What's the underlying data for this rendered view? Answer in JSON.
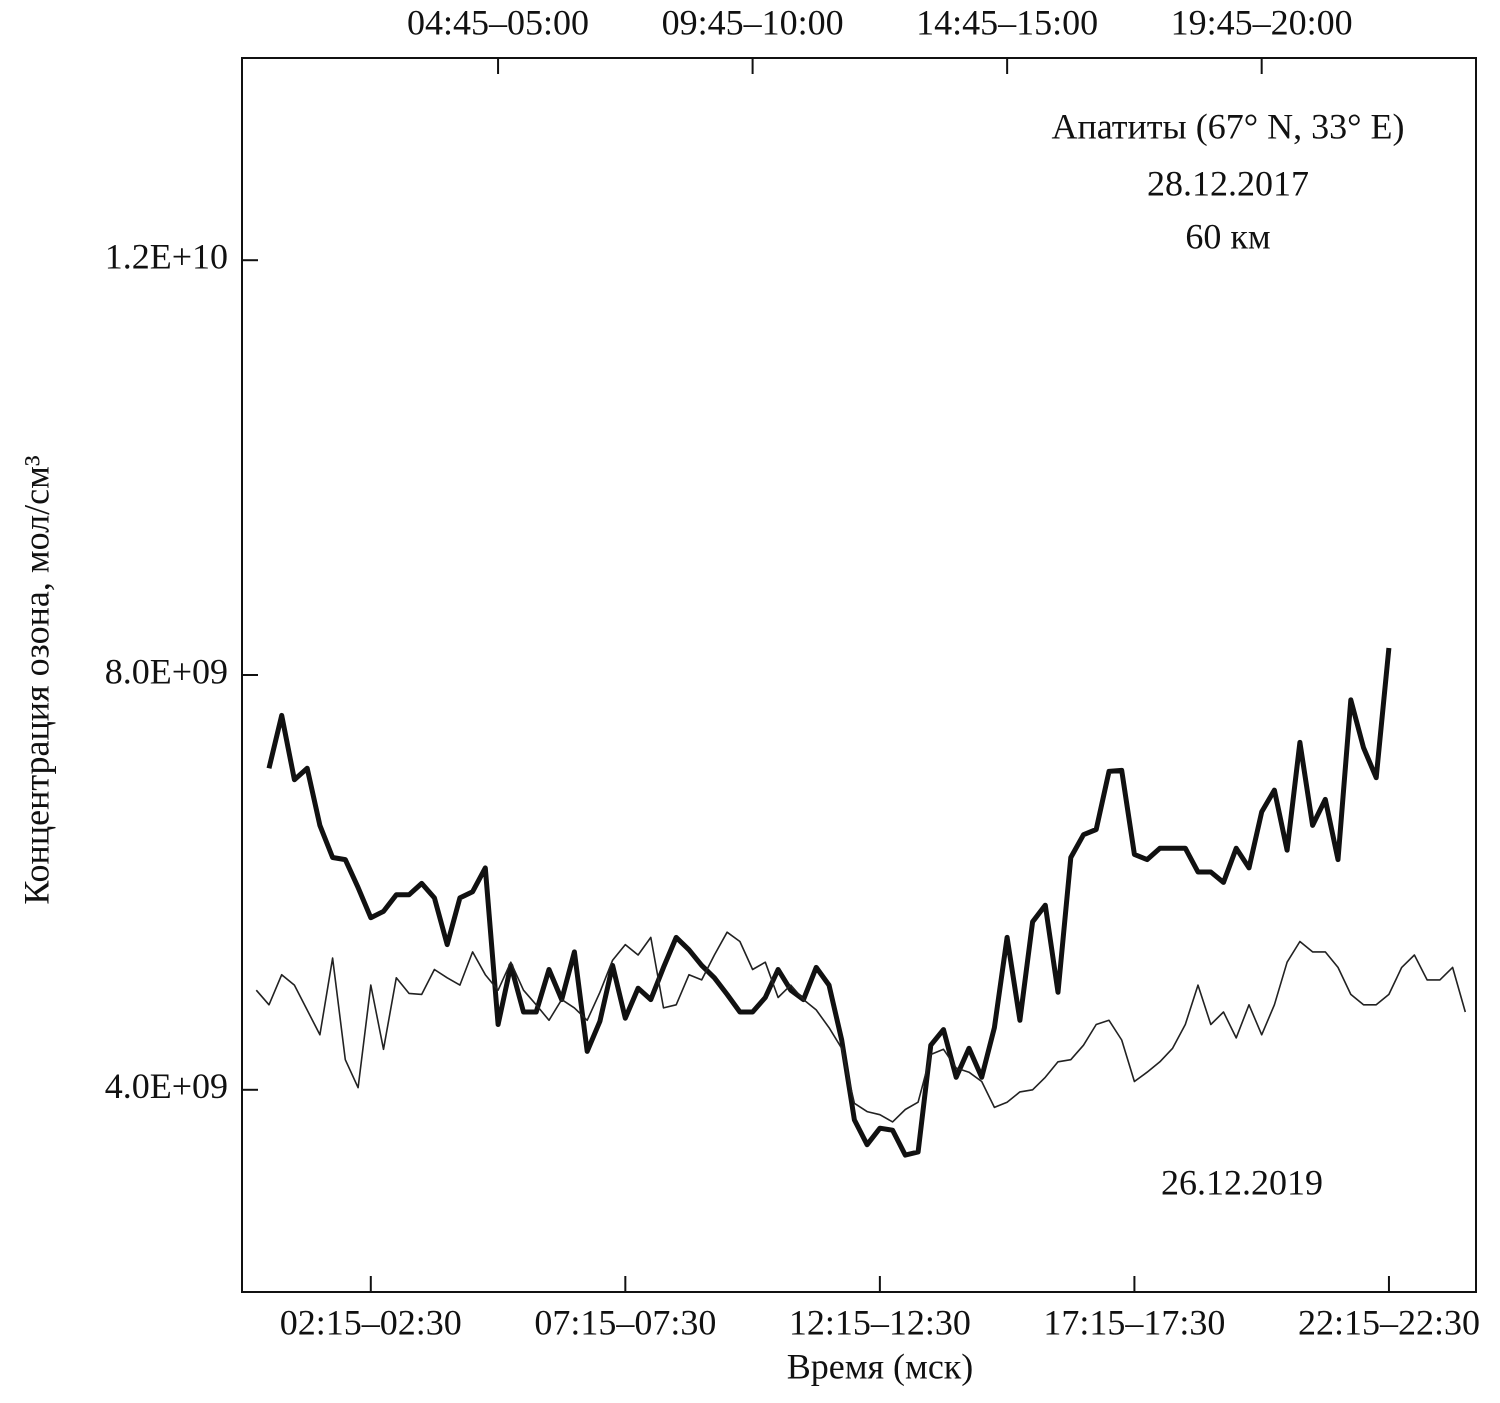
{
  "chart_data": {
    "type": "line",
    "title": "Апатиты (67° N, 33° E)",
    "annotations": [
      "60 км"
    ],
    "xlabel": "Время (мск)",
    "ylabel": "Концентрация озона, мол/см³",
    "xlim": [
      -0.28,
      23.96
    ],
    "ylim": [
      2050000000,
      13950000000
    ],
    "xticks": [
      {
        "value": 2.25,
        "label": "02:15–02:30"
      },
      {
        "value": 7.25,
        "label": "07:15–07:30"
      },
      {
        "value": 12.25,
        "label": "12:15–12:30"
      },
      {
        "value": 17.25,
        "label": "17:15–17:30"
      },
      {
        "value": 22.25,
        "label": "22:15–22:30"
      }
    ],
    "x2ticks": [
      {
        "value": 4.75,
        "label": "04:45–05:00"
      },
      {
        "value": 9.75,
        "label": "09:45–10:00"
      },
      {
        "value": 14.75,
        "label": "14:45–15:00"
      },
      {
        "value": 19.75,
        "label": "19:45–20:00"
      }
    ],
    "yticks": [
      {
        "value": 4000000000,
        "label": "4.0E+09"
      },
      {
        "value": 8000000000,
        "label": "8.0E+09"
      },
      {
        "value": 12000000000,
        "label": "1.2E+10"
      }
    ],
    "grid": false,
    "series": [
      {
        "name": "28.12.2017",
        "color": "#111111",
        "width": 5,
        "x": [
          0.25,
          0.5,
          0.75,
          1,
          1.25,
          1.5,
          1.75,
          2,
          2.25,
          2.5,
          2.75,
          3,
          3.25,
          3.5,
          3.75,
          4,
          4.25,
          4.5,
          4.75,
          5,
          5.25,
          5.5,
          5.75,
          6,
          6.25,
          6.5,
          6.75,
          7,
          7.25,
          7.5,
          7.75,
          8,
          8.25,
          8.5,
          8.75,
          9,
          9.25,
          9.5,
          9.75,
          10,
          10.25,
          10.5,
          10.75,
          11,
          11.25,
          11.5,
          11.75,
          12,
          12.25,
          12.5,
          12.75,
          13,
          13.25,
          13.5,
          13.75,
          14,
          14.25,
          14.5,
          14.75,
          15,
          15.25,
          15.5,
          15.75,
          16,
          16.25,
          16.5,
          16.75,
          17,
          17.25,
          17.5,
          17.75,
          18,
          18.25,
          18.5,
          18.75,
          19,
          19.25,
          19.5,
          19.75,
          20,
          20.25,
          20.5,
          20.75,
          21,
          21.25,
          21.5,
          21.75,
          22,
          22.25
        ],
        "values": [
          7100000000.0,
          7610000000.0,
          6990000000.0,
          7100000000.0,
          6550000000.0,
          6240000000.0,
          6220000000.0,
          5950000000.0,
          5660000000.0,
          5720000000.0,
          5880000000.0,
          5880000000.0,
          5990000000.0,
          5850000000.0,
          5400000000.0,
          5850000000.0,
          5910000000.0,
          6140000000.0,
          4630000000.0,
          5200000000.0,
          4750000000.0,
          4750000000.0,
          5160000000.0,
          4870000000.0,
          5330000000.0,
          4370000000.0,
          4660000000.0,
          5200000000.0,
          4690000000.0,
          4980000000.0,
          4870000000.0,
          5180000000.0,
          5470000000.0,
          5350000000.0,
          5200000000.0,
          5080000000.0,
          4920000000.0,
          4750000000.0,
          4750000000.0,
          4890000000.0,
          5160000000.0,
          4960000000.0,
          4870000000.0,
          5180000000.0,
          5010000000.0,
          4480000000.0,
          3710000000.0,
          3470000000.0,
          3630000000.0,
          3610000000.0,
          3370000000.0,
          3400000000.0,
          4430000000.0,
          4580000000.0,
          4120000000.0,
          4400000000.0,
          4120000000.0,
          4600000000.0,
          5470000000.0,
          4670000000.0,
          5620000000.0,
          5780000000.0,
          4940000000.0,
          6240000000.0,
          6460000000.0,
          6510000000.0,
          7070000000.0,
          7080000000.0,
          6270000000.0,
          6220000000.0,
          6330000000.0,
          6330000000.0,
          6330000000.0,
          6100000000.0,
          6100000000.0,
          6000000000.0,
          6330000000.0,
          6140000000.0,
          6680000000.0,
          6890000000.0,
          6310000000.0,
          7350000000.0,
          6550000000.0,
          6800000000.0,
          6220000000.0,
          7760000000.0,
          7300000000.0,
          7010000000.0,
          8260000000.0
        ]
      },
      {
        "name": "26.12.2019",
        "color": "#222222",
        "width": 1.6,
        "x": [
          0,
          0.25,
          0.5,
          0.75,
          1.25,
          1.5,
          1.75,
          2,
          2.25,
          2.5,
          2.75,
          3,
          3.25,
          3.5,
          3.75,
          4,
          4.25,
          4.5,
          4.75,
          5,
          5.25,
          5.5,
          5.75,
          6,
          6.25,
          6.5,
          6.75,
          7,
          7.25,
          7.5,
          7.75,
          8,
          8.25,
          8.5,
          8.75,
          9,
          9.25,
          9.5,
          9.75,
          10,
          10.25,
          10.5,
          10.75,
          11,
          11.25,
          11.5,
          11.75,
          12,
          12.25,
          12.5,
          12.75,
          13,
          13.25,
          13.5,
          13.75,
          14,
          14.25,
          14.5,
          14.75,
          15,
          15.25,
          15.5,
          15.75,
          16,
          16.25,
          16.5,
          16.75,
          17,
          17.25,
          17.5,
          17.75,
          18,
          18.25,
          18.5,
          18.75,
          19,
          19.25,
          19.5,
          19.75,
          20,
          20.25,
          20.5,
          20.75,
          21,
          21.25,
          21.5,
          21.75,
          22,
          22.25,
          22.5,
          22.75,
          23,
          23.25,
          23.5,
          23.75
        ],
        "values": [
          4960000000.0,
          4820000000.0,
          5110000000.0,
          5010000000.0,
          4530000000.0,
          5270000000.0,
          4290000000.0,
          4020000000.0,
          5010000000.0,
          4390000000.0,
          5080000000.0,
          4930000000.0,
          4920000000.0,
          5160000000.0,
          5080000000.0,
          5010000000.0,
          5330000000.0,
          5110000000.0,
          4960000000.0,
          5230000000.0,
          4960000000.0,
          4820000000.0,
          4670000000.0,
          4870000000.0,
          4790000000.0,
          4670000000.0,
          4940000000.0,
          5250000000.0,
          5400000000.0,
          5300000000.0,
          5470000000.0,
          4790000000.0,
          4820000000.0,
          5110000000.0,
          5060000000.0,
          5300000000.0,
          5520000000.0,
          5430000000.0,
          5160000000.0,
          5230000000.0,
          4890000000.0,
          5010000000.0,
          4870000000.0,
          4770000000.0,
          4600000000.0,
          4400000000.0,
          3870000000.0,
          3790000000.0,
          3760000000.0,
          3690000000.0,
          3810000000.0,
          3880000000.0,
          4340000000.0,
          4390000000.0,
          4210000000.0,
          4170000000.0,
          4080000000.0,
          3830000000.0,
          3880000000.0,
          3980000000.0,
          4000000000.0,
          4120000000.0,
          4270000000.0,
          4290000000.0,
          4430000000.0,
          4630000000.0,
          4670000000.0,
          4480000000.0,
          4080000000.0,
          4170000000.0,
          4270000000.0,
          4400000000.0,
          4630000000.0,
          5010000000.0,
          4630000000.0,
          4750000000.0,
          4500000000.0,
          4820000000.0,
          4530000000.0,
          4820000000.0,
          5230000000.0,
          5430000000.0,
          5330000000.0,
          5330000000.0,
          5180000000.0,
          4920000000.0,
          4820000000.0,
          4820000000.0,
          4920000000.0,
          5180000000.0,
          5300000000.0,
          5060000000.0,
          5060000000.0,
          5180000000.0,
          4750000000.0
        ]
      }
    ]
  }
}
